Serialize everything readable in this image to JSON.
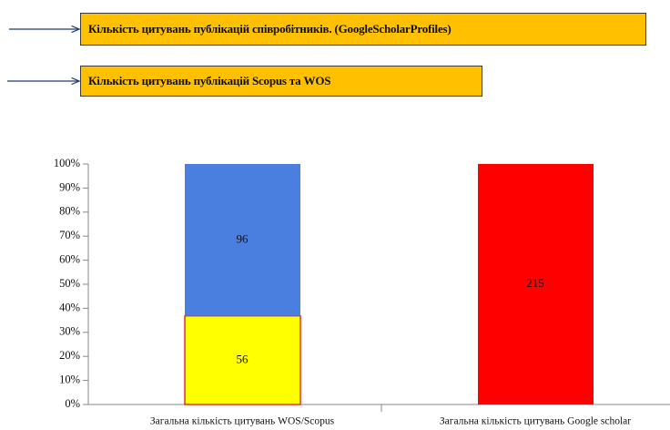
{
  "chart_data": {
    "type": "bar",
    "annotations": [
      "Кількість цитувань публікацій  співробітників. (GoogleScholarProfiles)",
      "Кількість цитувань публікацій Scopus та WOS"
    ],
    "categories": [
      "Загальна кількість цитувань WOS/Scopus",
      "Загальна кількість цитувань Google scholar"
    ],
    "stacking": "percent",
    "series": [
      {
        "color": "#ffff00",
        "values": [
          56,
          null
        ]
      },
      {
        "color": "#4a7fe0",
        "values": [
          96,
          null
        ]
      },
      {
        "color": "#ff0000",
        "values": [
          null,
          215
        ]
      }
    ],
    "ylim": [
      0,
      100
    ],
    "yticks": [
      {
        "value": 0,
        "label": "0%"
      },
      {
        "value": 10,
        "label": "10%"
      },
      {
        "value": 20,
        "label": "20%"
      },
      {
        "value": 30,
        "label": "30%"
      },
      {
        "value": 40,
        "label": "40%"
      },
      {
        "value": 50,
        "label": "50%"
      },
      {
        "value": 60,
        "label": "60%"
      },
      {
        "value": 70,
        "label": "70%"
      },
      {
        "value": 80,
        "label": "80%"
      },
      {
        "value": 90,
        "label": "90%"
      },
      {
        "value": 100,
        "label": "100%"
      }
    ]
  }
}
